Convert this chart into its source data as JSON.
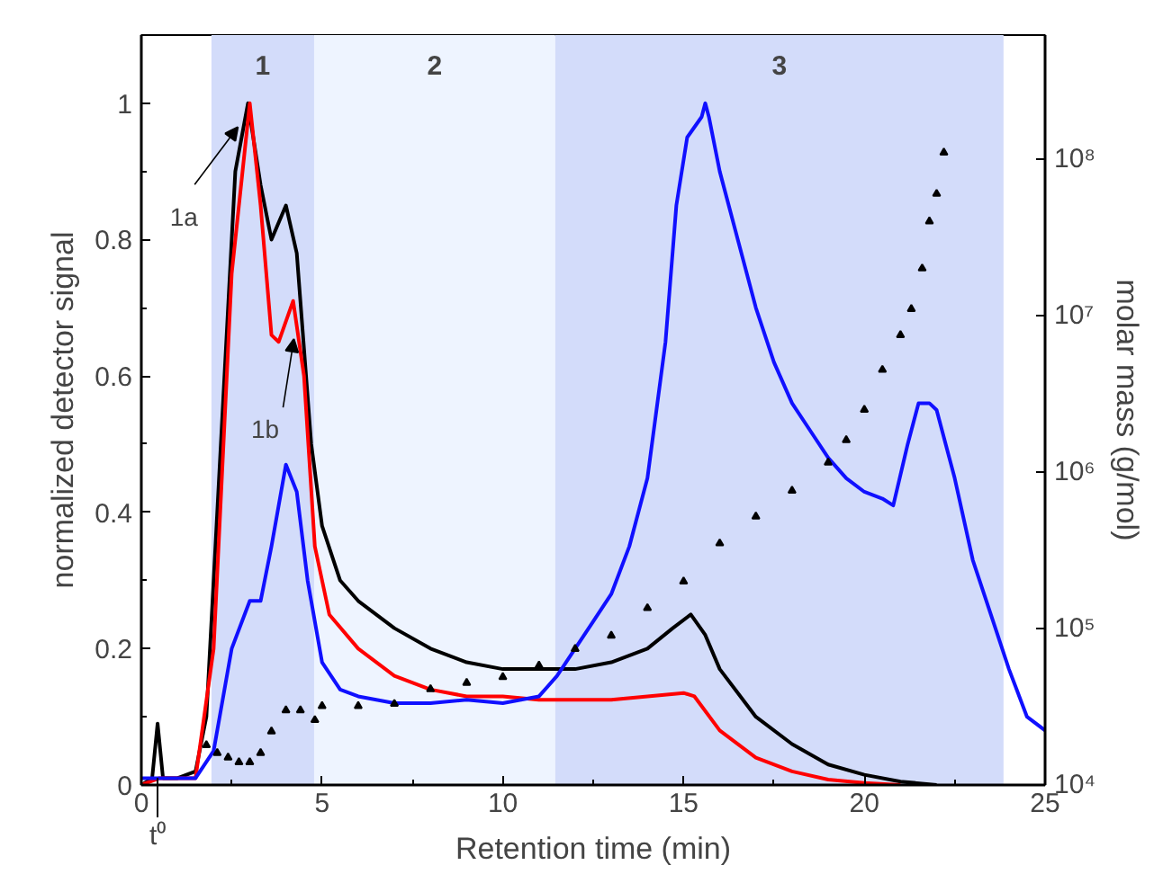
{
  "chart_data": {
    "type": "line",
    "xlabel": "Retention time (min)",
    "ylabel": "normalized detector signal",
    "y2label": "molar mass (g/mol)",
    "xlim": [
      0,
      25
    ],
    "xticks": [
      0,
      5,
      10,
      15,
      20,
      25
    ],
    "ylim": [
      0,
      1.1
    ],
    "yticks": [
      0,
      0.2,
      0.4,
      0.6,
      0.8,
      1.0
    ],
    "y2lim": [
      10000,
      620000000
    ],
    "y2ticks": [
      {
        "value": 10000,
        "label": "10⁴"
      },
      {
        "value": 100000,
        "label": "10⁵"
      },
      {
        "value": 1000000,
        "label": "10⁶"
      },
      {
        "value": 10000000,
        "label": "10⁷"
      },
      {
        "value": 100000000,
        "label": "10⁸"
      }
    ],
    "log": "y2",
    "grid": false,
    "bands": [
      {
        "axis": "x",
        "from": 1.94,
        "to": 4.78,
        "label": "1",
        "color": "#d3dcfa"
      },
      {
        "axis": "x",
        "from": 4.78,
        "to": 11.45,
        "label": "2",
        "color": "#eef4ff"
      },
      {
        "axis": "x",
        "from": 11.45,
        "to": 23.85,
        "label": "3",
        "color": "#d3dcfa"
      }
    ],
    "annotations": [
      {
        "text": "1a",
        "x": 2.67,
        "y": 0.965
      },
      {
        "text": "1b",
        "x": 4.22,
        "y": 0.654
      },
      {
        "text": "t⁰",
        "x": 0.45,
        "y": 0
      }
    ],
    "series": [
      {
        "color": "#000000",
        "x": [
          0,
          0.3,
          0.45,
          0.6,
          1.0,
          1.5,
          1.8,
          2.2,
          2.6,
          2.95,
          3.3,
          3.6,
          4.0,
          4.3,
          4.7,
          5.0,
          5.5,
          6,
          7,
          8,
          9,
          10,
          11,
          12,
          13,
          14,
          14.7,
          15.2,
          15.6,
          16,
          17,
          18,
          19,
          20,
          21,
          22
        ],
        "values": [
          0,
          0.01,
          0.09,
          0.01,
          0.01,
          0.02,
          0.1,
          0.5,
          0.9,
          1.0,
          0.88,
          0.8,
          0.85,
          0.78,
          0.5,
          0.38,
          0.3,
          0.27,
          0.23,
          0.2,
          0.18,
          0.17,
          0.17,
          0.17,
          0.18,
          0.2,
          0.23,
          0.25,
          0.22,
          0.17,
          0.1,
          0.06,
          0.03,
          0.015,
          0.005,
          0
        ]
      },
      {
        "color": "#ff0000",
        "x": [
          0,
          0.5,
          1.5,
          2.0,
          2.5,
          3.0,
          3.3,
          3.6,
          3.8,
          4.2,
          4.5,
          4.8,
          5.2,
          6,
          7,
          8,
          9,
          10,
          11,
          13,
          14,
          15,
          15.3,
          16,
          17,
          18,
          19,
          20,
          21
        ],
        "values": [
          0,
          0.01,
          0.01,
          0.2,
          0.75,
          1.0,
          0.85,
          0.66,
          0.65,
          0.71,
          0.6,
          0.35,
          0.25,
          0.2,
          0.16,
          0.14,
          0.13,
          0.13,
          0.125,
          0.125,
          0.13,
          0.135,
          0.13,
          0.08,
          0.04,
          0.02,
          0.008,
          0.003,
          0
        ]
      },
      {
        "color": "#1010ff",
        "x": [
          0,
          1.5,
          2.0,
          2.5,
          3.0,
          3.3,
          3.6,
          4.0,
          4.3,
          4.6,
          5,
          5.5,
          6,
          7,
          8,
          9,
          10,
          11,
          11.5,
          12,
          12.5,
          13,
          13.5,
          14,
          14.5,
          14.8,
          15.1,
          15.5,
          15.6,
          15.7,
          16,
          16.5,
          17,
          17.5,
          18,
          18.5,
          19,
          19.5,
          20,
          20.5,
          20.8,
          21.2,
          21.5,
          21.8,
          22,
          22.5,
          23,
          23.5,
          24,
          24.5,
          25
        ],
        "values": [
          0.01,
          0.01,
          0.05,
          0.2,
          0.27,
          0.27,
          0.35,
          0.47,
          0.43,
          0.3,
          0.18,
          0.14,
          0.13,
          0.12,
          0.12,
          0.125,
          0.12,
          0.13,
          0.16,
          0.2,
          0.24,
          0.28,
          0.35,
          0.45,
          0.65,
          0.85,
          0.95,
          0.98,
          1.0,
          0.98,
          0.9,
          0.8,
          0.7,
          0.62,
          0.56,
          0.52,
          0.48,
          0.45,
          0.43,
          0.42,
          0.41,
          0.5,
          0.56,
          0.56,
          0.55,
          0.45,
          0.33,
          0.25,
          0.17,
          0.1,
          0.08
        ]
      },
      {
        "type": "scatter",
        "axis": "y2",
        "marker": "triangle",
        "color": "#000000",
        "x": [
          1.8,
          2.1,
          2.4,
          2.7,
          3.0,
          3.3,
          3.6,
          4.0,
          4.4,
          4.8,
          5.0,
          6,
          7,
          8,
          9,
          10,
          11,
          12,
          13,
          14,
          15,
          16,
          17,
          18,
          19,
          19.5,
          20,
          20.5,
          21,
          21.3,
          21.6,
          21.8,
          22.0,
          22.2
        ],
        "values": [
          18000,
          16000,
          15000,
          14000,
          14000,
          16000,
          22000,
          30000,
          30000,
          26000,
          32000,
          32000,
          33000,
          41000,
          45000,
          49000,
          58000,
          74000,
          90000,
          135000,
          200000,
          350000,
          520000,
          760000,
          1150000,
          1600000,
          2500000,
          4500000,
          7500000,
          11000000,
          20000000,
          40000000,
          60000000,
          110000000
        ]
      }
    ]
  }
}
